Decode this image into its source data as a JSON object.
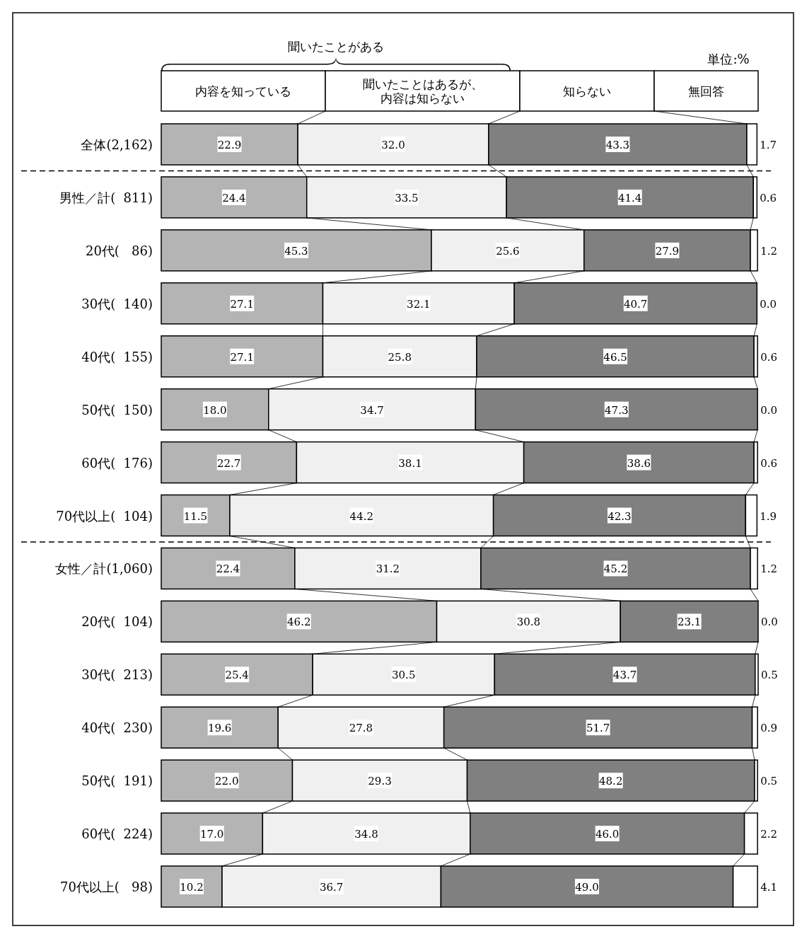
{
  "chart_data": {
    "type": "bar",
    "orientation": "horizontal",
    "stacked": true,
    "legend": "top",
    "annotations": [
      "聞いたことがある",
      "単位:%"
    ],
    "categories": [
      "全体(2,162)",
      "男性／計(  811)",
      "20代(   86)",
      "30代(  140)",
      "40代(  155)",
      "50代(  150)",
      "60代(  176)",
      "70代以上(  104)",
      "女性／計(1,060)",
      "20代(  104)",
      "30代(  213)",
      "40代(  230)",
      "50代(  191)",
      "60代(  224)",
      "70代以上(   98)"
    ],
    "series": [
      {
        "name": "内容を知っている",
        "color": "#b4b4b4",
        "values": [
          22.9,
          24.4,
          45.3,
          27.1,
          27.1,
          18.0,
          22.7,
          11.5,
          22.4,
          46.2,
          25.4,
          19.6,
          22.0,
          17.0,
          10.2
        ],
        "value_labels": [
          "22.9",
          "24.4",
          "45.3",
          "27.1",
          "27.1",
          "18.0",
          "22.7",
          "11.5",
          "22.4",
          "46.2",
          "25.4",
          "19.6",
          "22.0",
          "17.0",
          "10.2"
        ]
      },
      {
        "name": "聞いたことはあるが、内容は知らない",
        "color": "#f0f0f0",
        "values": [
          32.0,
          33.5,
          25.6,
          32.1,
          25.8,
          34.7,
          38.1,
          44.2,
          31.2,
          30.8,
          30.5,
          27.8,
          29.3,
          34.8,
          36.7
        ],
        "value_labels": [
          "32.0",
          "33.5",
          "25.6",
          "32.1",
          "25.8",
          "34.7",
          "38.1",
          "44.2",
          "31.2",
          "30.8",
          "30.5",
          "27.8",
          "29.3",
          "34.8",
          "36.7"
        ]
      },
      {
        "name": "知らない",
        "color": "#808080",
        "values": [
          43.3,
          41.4,
          27.9,
          40.7,
          46.5,
          47.3,
          38.6,
          42.3,
          45.2,
          23.1,
          43.7,
          51.7,
          48.2,
          46.0,
          49.0
        ],
        "value_labels": [
          "43.3",
          "41.4",
          "27.9",
          "40.7",
          "46.5",
          "47.3",
          "38.6",
          "42.3",
          "45.2",
          "23.1",
          "43.7",
          "51.7",
          "48.2",
          "46.0",
          "49.0"
        ]
      },
      {
        "name": "無回答",
        "color": "#ffffff",
        "values": [
          1.7,
          0.6,
          1.2,
          0.0,
          0.6,
          0.0,
          0.6,
          1.9,
          1.2,
          0.0,
          0.5,
          0.9,
          0.5,
          2.2,
          4.1
        ],
        "value_labels": [
          "1.7",
          "0.6",
          "1.2",
          "0.0",
          "0.6",
          "0.0",
          "0.6",
          "1.9",
          "1.2",
          "0.0",
          "0.5",
          "0.9",
          "0.5",
          "2.2",
          "4.1"
        ]
      }
    ]
  }
}
